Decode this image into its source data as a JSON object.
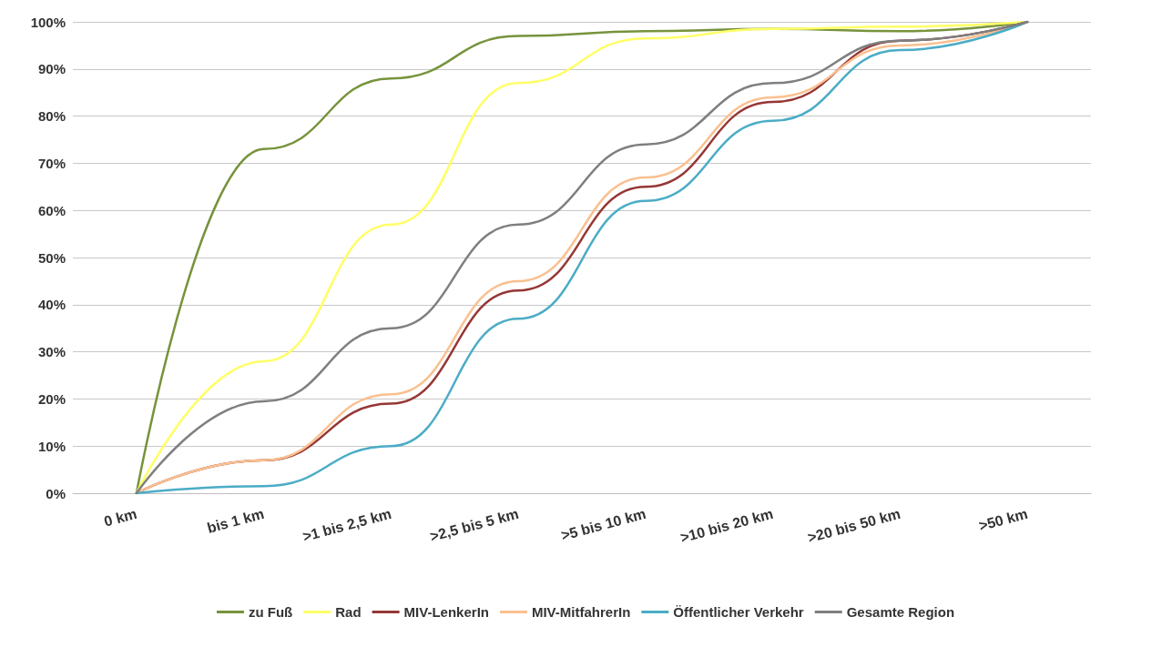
{
  "chart_data": {
    "type": "line",
    "categories": [
      "0 km",
      "bis 1 km",
      ">1 bis 2,5 km",
      ">2,5 bis 5 km",
      ">5 bis 10 km",
      ">10 bis 20 km",
      ">20 bis 50 km",
      ">50 km"
    ],
    "series": [
      {
        "name": "zu Fuß",
        "color": "#77933c",
        "values": [
          0,
          73,
          88,
          97,
          98,
          98.5,
          98,
          100
        ]
      },
      {
        "name": "Rad",
        "color": "#ffff66",
        "values": [
          0,
          28,
          57,
          87,
          96.5,
          98.5,
          99,
          100
        ]
      },
      {
        "name": "MIV-LenkerIn",
        "color": "#953735",
        "values": [
          0,
          7,
          19,
          43,
          65,
          83,
          96,
          100
        ]
      },
      {
        "name": "MIV-MitfahrerIn",
        "color": "#fac090",
        "values": [
          0,
          7,
          21,
          45,
          67,
          84,
          95,
          100
        ]
      },
      {
        "name": "Öffentlicher Verkehr",
        "color": "#4bacc6",
        "values": [
          0,
          1.5,
          10,
          37,
          62,
          79,
          94,
          100
        ]
      },
      {
        "name": "Gesamte Region",
        "color": "#7f7f7f",
        "values": [
          0,
          19.5,
          35,
          57,
          74,
          87,
          96,
          100
        ]
      }
    ],
    "ylim": [
      0,
      100
    ],
    "yticks": [
      {
        "value": 0,
        "label": "0%"
      },
      {
        "value": 10,
        "label": "10%"
      },
      {
        "value": 20,
        "label": "20%"
      },
      {
        "value": 30,
        "label": "30%"
      },
      {
        "value": 40,
        "label": "40%"
      },
      {
        "value": 50,
        "label": "50%"
      },
      {
        "value": 60,
        "label": "60%"
      },
      {
        "value": 70,
        "label": "70%"
      },
      {
        "value": 80,
        "label": "80%"
      },
      {
        "value": 90,
        "label": "90%"
      },
      {
        "value": 100,
        "label": "100%"
      }
    ],
    "grid": "y",
    "legend": "bottom",
    "marker": "none",
    "line_style": "solid"
  }
}
